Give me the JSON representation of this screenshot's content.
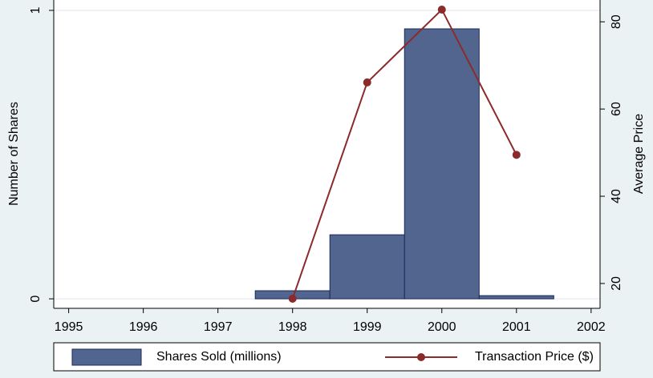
{
  "chart_data": {
    "type": "combo",
    "x": [
      1998,
      1999,
      2000,
      2001
    ],
    "series": [
      {
        "name": "Shares Sold (millions)",
        "type": "bar",
        "color": "#52658f",
        "values": [
          0.028,
          0.222,
          0.936,
          0.011
        ]
      },
      {
        "name": "Transaction Price ($)",
        "type": "line",
        "color": "#8b2a2a",
        "axis": "y2",
        "values": [
          16.5,
          66.1,
          82.8,
          49.5
        ]
      }
    ],
    "y_label": "Number of Shares",
    "y2_label": "Average Price",
    "xlim": [
      1994.8,
      2002.12
    ],
    "xticks": [
      1995,
      1996,
      1997,
      1998,
      1999,
      2000,
      2001,
      2002
    ],
    "ylim": [
      -0.033,
      1.036
    ],
    "yticks": [
      0,
      1
    ],
    "y2lim": [
      14.3,
      85
    ],
    "y2ticks": [
      20,
      40,
      60,
      80
    ],
    "grid": true
  }
}
